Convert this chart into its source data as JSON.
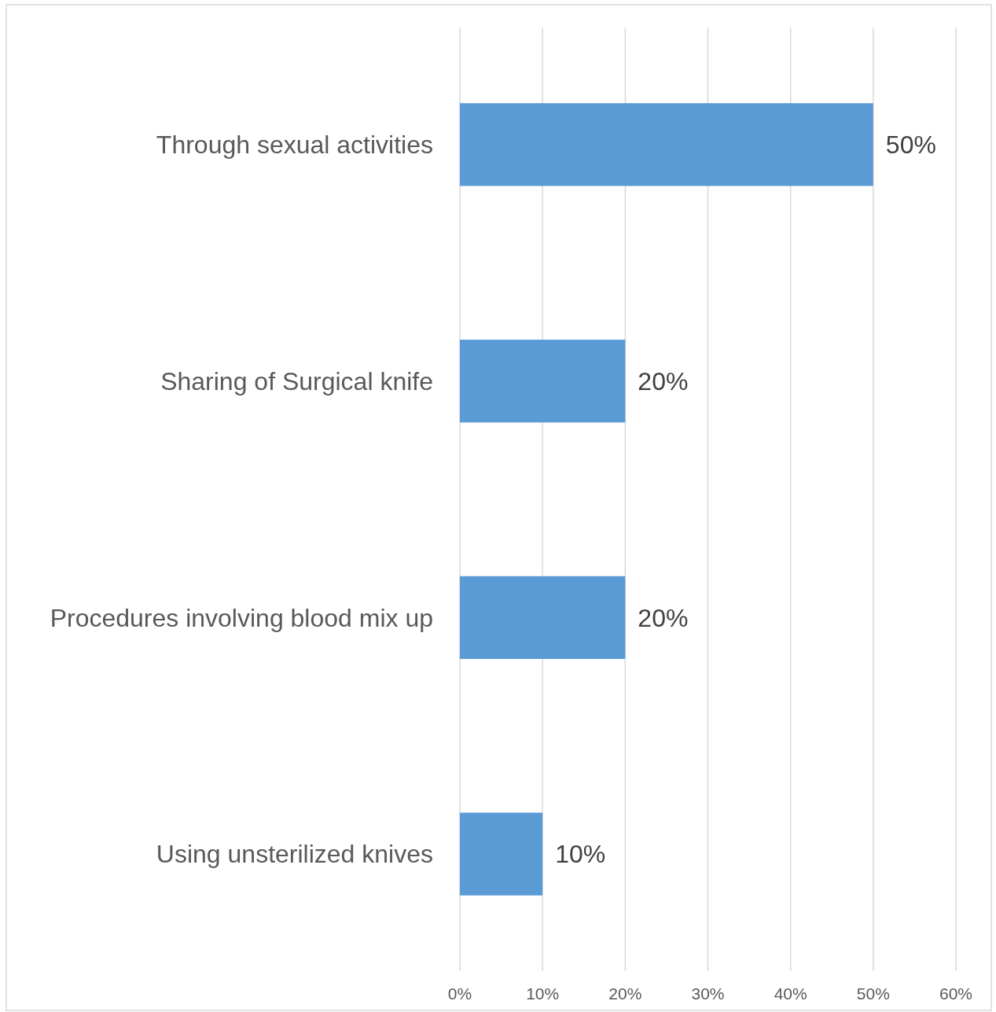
{
  "chart_data": {
    "type": "bar",
    "orientation": "horizontal",
    "categories": [
      "Through sexual activities",
      "Sharing of Surgical knife",
      "Procedures involving blood mix up",
      "Using unsterilized knives"
    ],
    "values": [
      50,
      20,
      20,
      10
    ],
    "value_labels": [
      "50%",
      "20%",
      "20%",
      "10%"
    ],
    "color": "#5b9bd5",
    "xlim": [
      0,
      60
    ],
    "xticks": [
      {
        "value": 0,
        "label": "0%"
      },
      {
        "value": 10,
        "label": "10%"
      },
      {
        "value": 20,
        "label": "20%"
      },
      {
        "value": 30,
        "label": "30%"
      },
      {
        "value": 40,
        "label": "40%"
      },
      {
        "value": 50,
        "label": "50%"
      },
      {
        "value": 60,
        "label": "60%"
      }
    ],
    "grid": "x"
  }
}
